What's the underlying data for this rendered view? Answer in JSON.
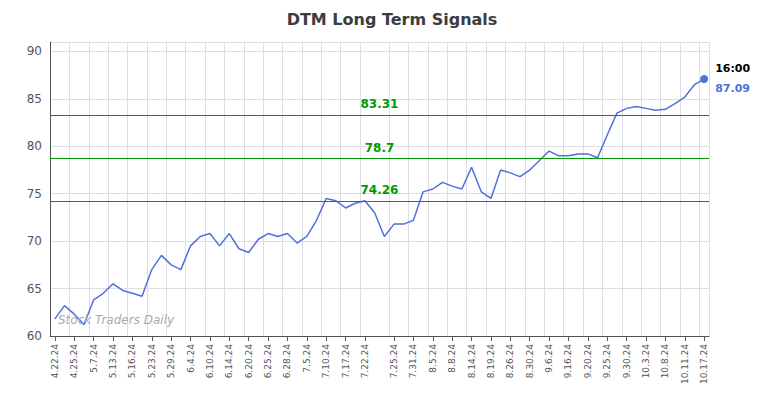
{
  "chart_data": {
    "type": "line",
    "title": "DTM Long Term Signals",
    "categories": [
      "4.22.24",
      null,
      "4.25.24",
      null,
      "5.7.24",
      null,
      "5.13.24",
      null,
      "5.16.24",
      null,
      "5.23.24",
      null,
      "5.29.24",
      null,
      "6.4.24",
      null,
      "6.10.24",
      null,
      "6.14.24",
      null,
      "6.20.24",
      null,
      "6.25.24",
      null,
      "6.28.24",
      null,
      "7.5.24",
      null,
      "7.10.24",
      null,
      "7.17.24",
      null,
      "7.22.24",
      null,
      null,
      "7.25.24",
      null,
      "7.31.24",
      null,
      "8.5.24",
      null,
      "8.8.24",
      null,
      "8.14.24",
      null,
      "8.19.24",
      null,
      "8.26.24",
      null,
      "8.30.24",
      null,
      "9.6.24",
      null,
      "9.16.24",
      null,
      "9.20.24",
      null,
      "9.25.24",
      null,
      "9.30.24",
      null,
      "10.3.24",
      null,
      "10.8.24",
      null,
      "10.11.24",
      null,
      "10.17.24"
    ],
    "values": [
      61.8,
      63.2,
      62.3,
      61.2,
      63.8,
      64.5,
      65.5,
      64.8,
      64.5,
      64.2,
      67.0,
      68.5,
      67.5,
      67.0,
      69.5,
      70.5,
      70.8,
      69.5,
      70.8,
      69.2,
      68.8,
      70.2,
      70.8,
      70.5,
      70.8,
      69.8,
      70.5,
      72.2,
      74.5,
      74.26,
      73.5,
      74.0,
      74.26,
      73.0,
      70.5,
      71.8,
      71.8,
      72.2,
      75.2,
      75.5,
      76.2,
      75.8,
      75.5,
      77.8,
      75.2,
      74.5,
      77.5,
      77.2,
      76.8,
      77.5,
      78.5,
      79.5,
      79.0,
      79.0,
      79.2,
      79.2,
      78.8,
      81.2,
      83.5,
      84.0,
      84.2,
      84.0,
      83.8,
      83.9,
      84.5,
      85.2,
      86.5,
      87.09
    ],
    "hlines": [
      {
        "value": 74.26,
        "label": "74.26",
        "color": "#009900"
      },
      {
        "value": 78.7,
        "label": "78.7",
        "color": "#009900"
      },
      {
        "value": 83.31,
        "label": "83.31",
        "color": "#009900"
      }
    ],
    "annotations": [
      {
        "text": "16:00",
        "x": "10.17.24",
        "y": 87.09
      },
      {
        "text": "87.09",
        "x": "10.17.24",
        "y": 87.09
      },
      {
        "text": "Stock Traders Daily"
      }
    ],
    "ylim": [
      60,
      91
    ],
    "yticks": [
      60,
      65,
      70,
      75,
      80,
      85,
      90
    ],
    "grid": true
  }
}
